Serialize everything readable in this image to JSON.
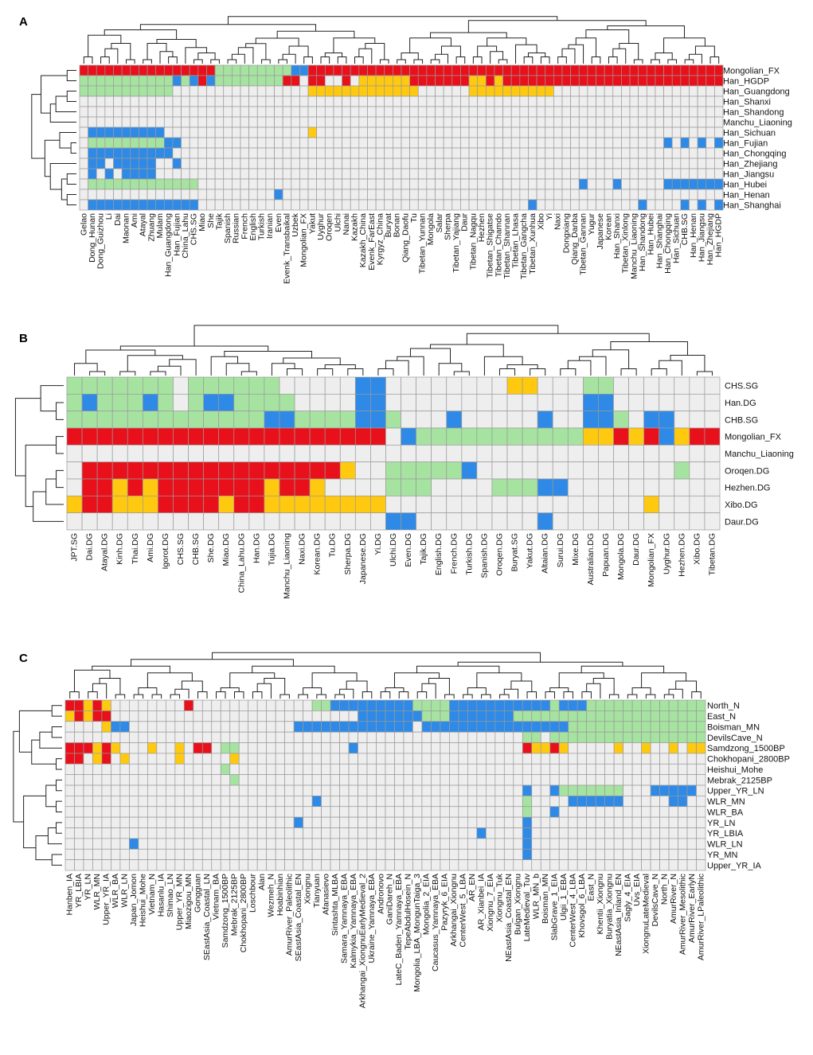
{
  "colors": {
    "grey": "#eeeeee",
    "red": "#e8111b",
    "yellow": "#ffc90f",
    "green": "#a6e3a1",
    "blue": "#2e8ae6",
    "grid": "#9a9a9a",
    "tree": "#222222"
  },
  "legend_codes": {
    "0": "grey",
    "1": "red",
    "2": "yellow",
    "3": "green",
    "4": "blue"
  },
  "chart_data": [
    {
      "type": "heatmap",
      "panel": "A",
      "rows": [
        "Mongolian_FX",
        "Han_HGDP",
        "Han_Guangdong",
        "Han_Shanxi",
        "Han_Shandong",
        "Manchu_Liaoning",
        "Han_Sichuan",
        "Han_Fujian",
        "Han_Chongqing",
        "Han_Zhejiang",
        "Han_Jiangsu",
        "Han_Hubei",
        "Han_Henan",
        "Han_Shanghai"
      ],
      "columns": [
        "Gelao",
        "Dong_Hunan",
        "Dong_Guizhou",
        "Li",
        "Dai",
        "Maonan",
        "Ami",
        "Atayal",
        "Zhuang",
        "Mulam",
        "Han_Guangdong",
        "Han_Fujian",
        "China_Lahu",
        "CHS.SG",
        "Miao",
        "She",
        "Tajik",
        "Spanish",
        "Russian",
        "French",
        "English",
        "Turkish",
        "Iranian",
        "Even",
        "Evenk_Transbaikal",
        "Uzbek",
        "Mongolian_FX",
        "Yakut",
        "Uyghur",
        "Oroqen",
        "Ulchi",
        "Nanai",
        "Kazakh",
        "Kazakh_China",
        "Evenk_FarEast",
        "Kyrgyz_China",
        "Buryat",
        "Bonan",
        "Qiang_Daofu",
        "Tu",
        "Tibetan_Yunnan",
        "Mongola",
        "Salar",
        "Sherpa",
        "Tibetan_Yajiang",
        "Daur",
        "Tibetan_Nagqu",
        "Hezhen",
        "Tibetan_Shigatse",
        "Tibetan_Chamdo",
        "Tibetan_Shannan",
        "Tibetan_Lhasa",
        "Tibetan_Gangcha",
        "Tibetan_Xunhua",
        "Xibo",
        "Yi",
        "Naxi",
        "Dongxiang",
        "Qiang_Danba",
        "Tibetan_Gannan",
        "Yugur",
        "Japanese",
        "Korean",
        "Han_Shanxi",
        "Tibetan_Xinlong",
        "Manchu_Liaoning",
        "Han_Shandong",
        "Han_Hubei",
        "Han_Shanghai",
        "Han_Chongqing",
        "Han_Sichuan",
        "CHB.SG",
        "Han_Henan",
        "Han_Jiangsu",
        "Han_Zhejiang",
        "Han_HGDP"
      ],
      "values": [
        "1111111111111111333333333441111111111111111111111111111111111111111111111111",
        "3333333333343414333333331101100102222221111111221211111111111111111111111111",
        "3333333333300000000000000002222222222222000000222222222200000000000000000000",
        "0000000000000000000000000000000000000000000000000000000000000000000000000000",
        "0000000000000000000000000000000000000000000000000000000000000000000000000000",
        "0000000000000000000000000000000000000000000000000000000000000000000000000000",
        "0444444444000000000000000002000000000000000000000000000000000000000000000000",
        "0333333333440000000000000000000000000000000000000000000000000000000004040404",
        "0444444444400000000000000000000000000000000000000000000000000000000000000000",
        "0440444440040000000000000000000000000000000000000000000000000000000000000000",
        "0404044440000000000000000000000000000000000000000000000000000000000000000000",
        "0333333333333300000000000000000000000000000000000000000000040004000004444444",
        "0000000000000000000000040000000000000000000000000000000000000000000000000000",
        "0444444444444400000000000000000000000000000000000000040000000000004000040404"
      ],
      "title": "",
      "xlabel": "",
      "ylabel": ""
    },
    {
      "type": "heatmap",
      "panel": "B",
      "rows": [
        "CHS.SG",
        "Han.DG",
        "CHB.SG",
        "Mongolian_FX",
        "Manchu_Liaoning",
        "Oroqen.DG",
        "Hezhen.DG",
        "Xibo.DG",
        "Daur.DG"
      ],
      "columns": [
        "JPT.SG",
        "Dai.DG",
        "Atayal.DG",
        "Kinh.DG",
        "Thai.DG",
        "Ami.DG",
        "Igorot.DG",
        "CHS.SG",
        "CHB.SG",
        "She.DG",
        "Miao.DG",
        "China_Lahu.DG",
        "Han.DG",
        "Tujia.DG",
        "Manchu_Liaoning",
        "Naxi.DG",
        "Korean.DG",
        "Tu.DG",
        "Sherpa.DG",
        "Japanese.DG",
        "Yi.DG",
        "Ulchi.DG",
        "Even.DG",
        "Tajik.DG",
        "English.DG",
        "French.DG",
        "Turkish.DG",
        "Spanish.DG",
        "Oroqen.DG",
        "Buryat.SG",
        "Yakut.DG",
        "Altaian.DG",
        "Surui.DG",
        "Mixe.DG",
        "Australian.DG",
        "Papuan.DG",
        "Mongola.DG",
        "Daur.DG",
        "Mongolian_FX",
        "Uyghur.DG",
        "Hezhen.DG",
        "Xibo.DG",
        "Tibetan.DG"
      ],
      "values": [
        "3333333033333300000440000000022000330000000",
        "3433343034433330000440000000000000440000000",
        "3333333333333443333443000400000400443044000",
        "1111111111111111111110433333333333221214211",
        "0000000000000000000000000000000000000000000",
        "0111111111111111112003333340000000000000300",
        "0112121111111211200003330000333440000000000",
        "2112221111211222222220000000000000000020000",
        "0000000000000000000004400000000400000000000"
      ],
      "title": "",
      "xlabel": "",
      "ylabel": ""
    },
    {
      "type": "heatmap",
      "panel": "C",
      "rows": [
        "North_N",
        "East_N",
        "Boisman_MN",
        "DevilsCave_N",
        "Samdzong_1500BP",
        "Chokhopani_2800BP",
        "Heishui_Mohe",
        "Mebrak_2125BP",
        "Upper_YR_LN",
        "WLR_MN",
        "WLR_BA",
        "YR_LN",
        "YR_LBIA",
        "WLR_LN",
        "YR_MN",
        "Upper_YR_IA"
      ],
      "columns": [
        "Hanben_IA",
        "YR_LBIA",
        "YR_LN",
        "WLR_MN",
        "Upper_YR_IA",
        "WLR_BA",
        "WLR_LN",
        "Japan_Jomon",
        "Heishui_Mohe",
        "Vietnam_N",
        "Hasanlu_IA",
        "Shimao_LN",
        "Upper_YR_MN",
        "Miaozigou_MN",
        "Gongguan",
        "SEastAsia_Coastal_LN",
        "Vietnam_BA",
        "Samdzong_1500BP",
        "Mebrak_2125BP",
        "Chokhopani_2800BP",
        "Loschbour",
        "Alan",
        "Wezmeh_N",
        "Hoabinhian",
        "AmurRiver_Paleolithic",
        "SEastAsia_Coastal_EN",
        "Xiongnu",
        "Tianyuan",
        "Afanasievo",
        "Sintashta_MLBA",
        "Samara_Yamnaya_EBA",
        "Kalmykia_Yamnaya_EBA",
        "Arkhangai_XiongnuEarlyMedieval_2",
        "Ukraine_Yamnaya_EBA",
        "Andronovo",
        "GaniDareh_N",
        "LateC_Baden_Yamnaya_EBA",
        "TepeAbdulHosein_N",
        "Mongolia_LBA_MongunTaiga_3",
        "Mongolia_2_EIA",
        "Caucasus_Yamnaya_EBA",
        "Pazyryk_6_EIA",
        "Arkhangai_Xiongnu",
        "CenterWest_5_LBA",
        "AR_EN",
        "AR_Xianbei_IA",
        "Xiongnu_7_EIA",
        "Xiongnu_Tuk",
        "NEastAsia_Coastal_EN",
        "Bulgan_Xiongnu",
        "LateMedieval_Tuv",
        "WLR_MN_b",
        "Boisman_MN",
        "SlabGrave_1_EIA",
        "Ulgii_1_EBA",
        "CenterWest_4_LBA",
        "Khovsgol_6_LBA",
        "East_N",
        "Khentii_Xiongnu",
        "Buryatia_Xiongnu",
        "NEastAsia_Inland_EN",
        "Sagly_4_EIA",
        "Uvs_EIA",
        "XiongnuLateMedieval",
        "DevilsCave_N",
        "North_N",
        "AmurRiver_N",
        "AmurRiver_Mesolithic",
        "AmurRiver_EarlyN",
        "AmurRiver_LPaleolithic"
      ],
      "values": [
        "1121200000000100000000000003344444444433334444444444434443333333333333",
        "2121100000000000000000000000000044444443334444444333333333333333333333",
        "0000244000000000000000000444444444444404444444444444444333333333333333",
        "0000000000000000000000000000000000000000000000000033033333333333333333",
        "1112120002002011033000000000000400000000000000000012212000002002002022",
        "1102102000002000002000000000000000000000000000000000000000000000000000",
        "0000000000000000030000000000000000000000000000000000000000000000000000",
        "0000000000000000003000000000000000000000000000000000000000000000000000",
        "0000000000000000000000000000000000000000000000000040043333333000444440",
        "0000000000000000000000000004000000000000000000000030000444444000004400",
        "0000000000000000000000000000000000000000000000000030040000000000000000",
        "0000000000000000000000000400000000000000000000000040000000000000000000",
        "0000000000000000000000000000000000000000000004000040000000000000000000",
        "0000000400000000000000000000000000000000000000000040000000000000000000",
        "0000000000000000000000000000000000000000000000000040000000000000000000",
        "0000000000000000000000000000000000000000000000000000000000000000000000"
      ],
      "title": "",
      "xlabel": "",
      "ylabel": ""
    }
  ]
}
